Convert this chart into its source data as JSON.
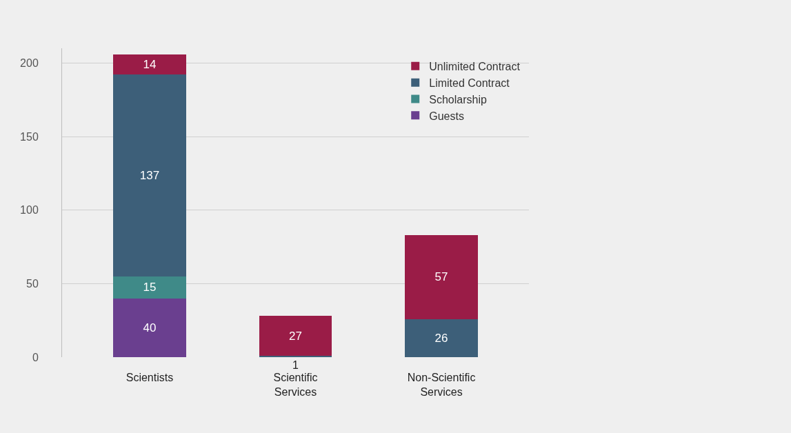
{
  "chart_data": {
    "type": "bar",
    "stacked": true,
    "categories": [
      "Scientists",
      "Scientific Services",
      "Non-Scientific Services"
    ],
    "series": [
      {
        "name": "Guests",
        "color": "#6a3f8f",
        "values": [
          40,
          null,
          null
        ]
      },
      {
        "name": "Scholarship",
        "color": "#3f8a88",
        "values": [
          15,
          null,
          null
        ]
      },
      {
        "name": "Limited Contract",
        "color": "#3d5f79",
        "values": [
          137,
          1,
          26
        ]
      },
      {
        "name": "Unlimited Contract",
        "color": "#9a1c47",
        "values": [
          14,
          27,
          57
        ]
      }
    ],
    "ylim": [
      0,
      210
    ],
    "yticks": [
      0,
      50,
      100,
      150,
      200
    ],
    "grid": "y",
    "legend": "top right",
    "data_labels": true
  }
}
